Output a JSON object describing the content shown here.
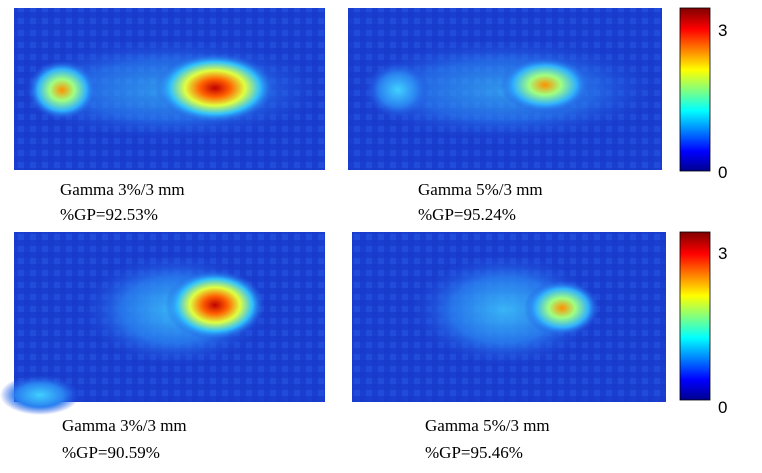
{
  "panels": [
    {
      "caption": "Gamma 3%/3 mm",
      "gp": "%GP=92.53%"
    },
    {
      "caption": "Gamma 5%/3 mm",
      "gp": "%GP=95.24%"
    },
    {
      "caption": "Gamma 3%/3 mm",
      "gp": "%GP=90.59%"
    },
    {
      "caption": "Gamma 5%/3 mm",
      "gp": "%GP=95.46%"
    }
  ],
  "colorbars": [
    {
      "max": "3",
      "min": "0"
    },
    {
      "max": "3",
      "min": "0"
    }
  ]
}
